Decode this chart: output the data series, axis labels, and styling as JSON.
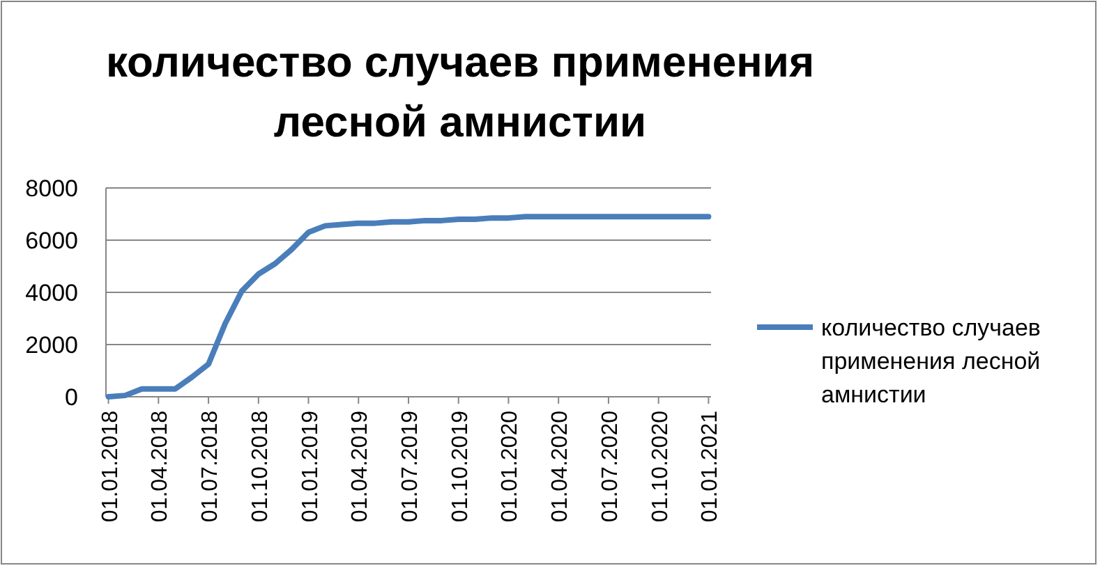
{
  "chart_data": {
    "type": "line",
    "title": "количество случаев применения лесной амнистии",
    "categories": [
      "01.01.2018",
      null,
      null,
      "01.04.2018",
      null,
      null,
      "01.07.2018",
      null,
      null,
      "01.10.2018",
      null,
      null,
      "01.01.2019",
      null,
      null,
      "01.04.2019",
      null,
      null,
      "01.07.2019",
      null,
      null,
      "01.10.2019",
      null,
      null,
      "01.01.2020",
      null,
      null,
      "01.04.2020",
      null,
      null,
      "01.07.2020",
      null,
      null,
      "01.10.2020",
      null,
      null,
      "01.01.2021"
    ],
    "series": [
      {
        "name": "количество случаев применения лесной амнистии",
        "color": "#4a7ebb",
        "values": [
          0,
          50,
          300,
          300,
          300,
          750,
          1250,
          2800,
          4050,
          4700,
          5100,
          5650,
          6300,
          6550,
          6600,
          6650,
          6650,
          6700,
          6700,
          6750,
          6750,
          6800,
          6800,
          6850,
          6850,
          6900,
          6900,
          6900,
          6900,
          6900,
          6900,
          6900,
          6900,
          6900,
          6900,
          6900,
          6900
        ]
      }
    ],
    "ylim": [
      0,
      8000
    ],
    "yticks": [
      0,
      2000,
      4000,
      6000,
      8000
    ],
    "grid": "y",
    "legend": "right",
    "marker": "none",
    "line_style": "solid"
  }
}
